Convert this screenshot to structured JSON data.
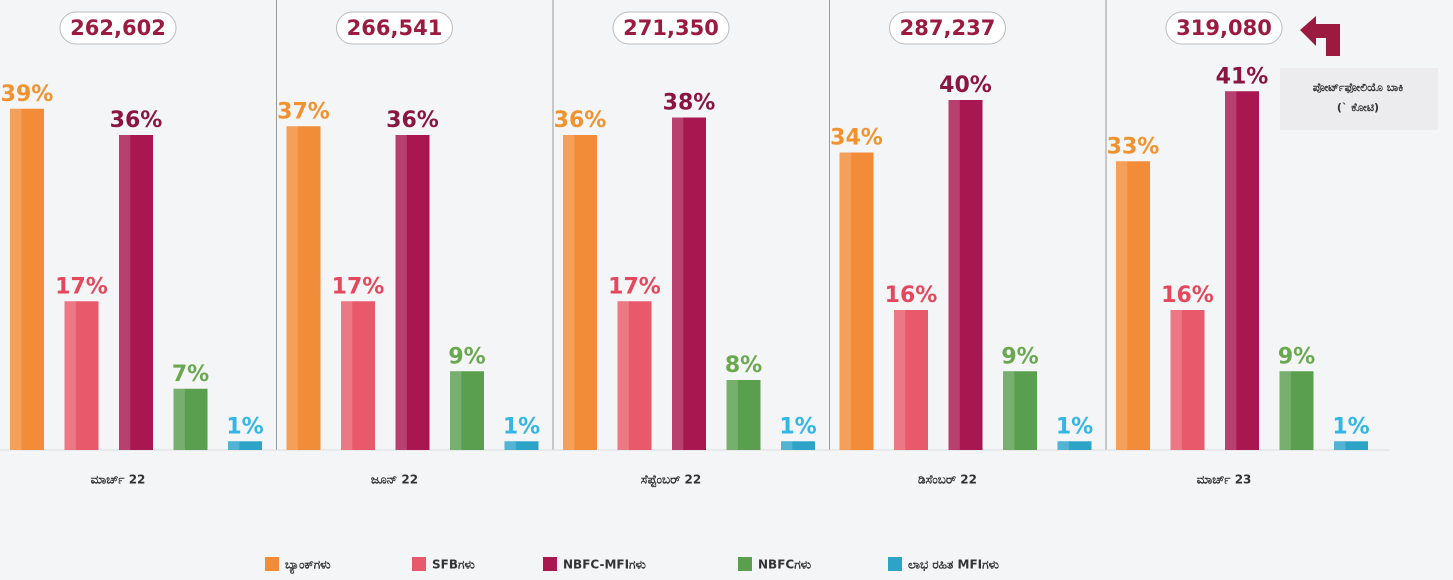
{
  "chart_data": {
    "type": "bar",
    "categories": [
      "ಮಾರ್ಚ್ 22",
      "ಜೂನ್ 22",
      "ಸೆಪ್ಟೆಂಬರ್ 22",
      "ಡಿಸೆಂಬರ್ 22",
      "ಮಾರ್ಚ್ 23"
    ],
    "totals": [
      {
        "value": 262602,
        "label": "262,602"
      },
      {
        "value": 266541,
        "label": "266,541"
      },
      {
        "value": 271350,
        "label": "271,350"
      },
      {
        "value": 287237,
        "label": "287,237"
      },
      {
        "value": 319080,
        "label": "319,080"
      }
    ],
    "annotation": [
      "ಪೋರ್ಟ್‌ಫೋಲಿಯೊ ಬಾಕಿ",
      "(` ಕೋಟಿ)"
    ],
    "series": [
      {
        "name": "ಬ್ಯಾಂಕ್‌ಗಳು",
        "color": "#f28c38",
        "label_color": "#f0922e",
        "values": [
          39,
          37,
          36,
          34,
          33
        ],
        "value_labels": [
          "39%",
          "37%",
          "36%",
          "34%",
          "33%"
        ]
      },
      {
        "name": "SFBಗಳು",
        "color": "#e8596b",
        "label_color": "#e3485c",
        "values": [
          17,
          17,
          17,
          16,
          16
        ],
        "value_labels": [
          "17%",
          "17%",
          "17%",
          "16%",
          "16%"
        ]
      },
      {
        "name": "NBFC-MFIಗಳು",
        "color": "#a8174f",
        "label_color": "#8a1540",
        "values": [
          36,
          36,
          38,
          40,
          41
        ],
        "value_labels": [
          "36%",
          "36%",
          "38%",
          "40%",
          "41%"
        ]
      },
      {
        "name": "NBFCಗಳು",
        "color": "#5a9e4f",
        "label_color": "#6aa84f",
        "values": [
          7,
          9,
          8,
          9,
          9
        ],
        "value_labels": [
          "7%",
          "9%",
          "8%",
          "9%",
          "9%"
        ]
      },
      {
        "name": "ಲಾಭ ರಹಿತ MFIಗಳು",
        "color": "#2ea3c8",
        "label_color": "#33b5e5",
        "values": [
          1,
          1,
          1,
          1,
          1
        ],
        "value_labels": [
          "1%",
          "1%",
          "1%",
          "1%",
          "1%"
        ]
      }
    ]
  }
}
